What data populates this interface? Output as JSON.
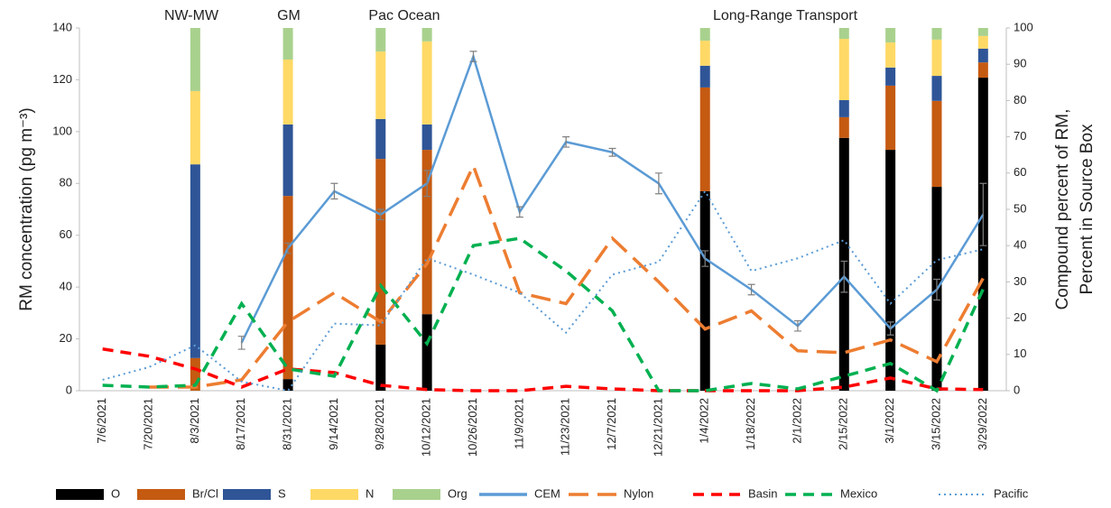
{
  "chart_data": {
    "type": "combo",
    "ylabel": "RM concentration (pg m⁻³)",
    "y2label": [
      "Compound percent of RM,",
      "Percent in Source Box"
    ],
    "annotations": [
      "NW-MW",
      "GM",
      "Pac Ocean",
      "Long-Range Transport"
    ],
    "categories": [
      "7/6/2021",
      "7/20/2021",
      "8/3/2021",
      "8/17/2021",
      "8/31/2021",
      "9/14/2021",
      "9/28/2021",
      "10/12/2021",
      "10/26/2021",
      "11/9/2021",
      "11/23/2021",
      "12/7/2021",
      "12/21/2021",
      "1/4/2022",
      "1/18/2022",
      "2/1/2022",
      "2/15/2022",
      "3/1/2022",
      "3/15/2022",
      "3/29/2022"
    ],
    "ylim": [
      0,
      140
    ],
    "yticks": [
      0,
      20,
      40,
      60,
      80,
      100,
      120,
      140
    ],
    "y2lim": [
      0,
      100
    ],
    "y2ticks": [
      0,
      10,
      20,
      30,
      40,
      50,
      60,
      70,
      80,
      90,
      100
    ],
    "series": [
      {
        "name": "O",
        "type": "bar",
        "axis": "y2",
        "color": "#000000",
        "values": [
          null,
          null,
          0,
          null,
          3.2,
          null,
          12.7,
          21.1,
          null,
          null,
          null,
          null,
          null,
          55,
          null,
          null,
          69.7,
          66.4,
          56.2,
          86.3
        ]
      },
      {
        "name": "Br/Cl",
        "type": "bar",
        "axis": "y2",
        "color": "#c55a11",
        "values": [
          null,
          null,
          9,
          null,
          50.5,
          null,
          51.2,
          45.3,
          null,
          null,
          null,
          null,
          null,
          28.6,
          null,
          null,
          5.7,
          17.7,
          23.7,
          4.2
        ]
      },
      {
        "name": "S",
        "type": "bar",
        "axis": "y2",
        "color": "#2f5597",
        "values": [
          null,
          null,
          53.4,
          null,
          19.7,
          null,
          11,
          7,
          null,
          null,
          null,
          null,
          null,
          6,
          null,
          null,
          4.7,
          5,
          6.9,
          3.8
        ]
      },
      {
        "name": "N",
        "type": "bar",
        "axis": "y2",
        "color": "#ffd966",
        "values": [
          null,
          null,
          20.2,
          null,
          17.9,
          null,
          18.6,
          22.9,
          null,
          null,
          null,
          null,
          null,
          6.9,
          null,
          null,
          16.9,
          6.9,
          10,
          3.5
        ]
      },
      {
        "name": "Org",
        "type": "bar",
        "axis": "y2",
        "color": "#a9d18e",
        "values": [
          null,
          null,
          17.4,
          null,
          8.7,
          null,
          6.5,
          3.7,
          null,
          null,
          null,
          null,
          null,
          3.5,
          null,
          null,
          3,
          4,
          3.2,
          2.2
        ]
      },
      {
        "name": "CEM",
        "type": "line",
        "style": "solid",
        "color": "#5b9bd5",
        "values": [
          null,
          null,
          null,
          18.5,
          55,
          77,
          68,
          80,
          129,
          69,
          96,
          92,
          80,
          51,
          39,
          25,
          44,
          24,
          39,
          68
        ],
        "errors": [
          null,
          null,
          null,
          2.5,
          2,
          3,
          2,
          5,
          2,
          2,
          2,
          1.5,
          4,
          3,
          2,
          2,
          6,
          2.5,
          4,
          12
        ]
      },
      {
        "name": "Nylon",
        "type": "line",
        "axis": "y2",
        "style": "long-dash",
        "color": "#ed7d31",
        "values": [
          null,
          1,
          1,
          3,
          19,
          27,
          19,
          35,
          62,
          27,
          24,
          42,
          30,
          17,
          22,
          11,
          10.5,
          14,
          8,
          31
        ]
      },
      {
        "name": "Basin",
        "type": "line",
        "axis": "y2",
        "style": "dash",
        "color": "#ff0000",
        "values": [
          11.5,
          9.5,
          6,
          1,
          6,
          5,
          1.5,
          0.3,
          0,
          0,
          1.2,
          0.5,
          0,
          0,
          0,
          0,
          1,
          3.5,
          0.5,
          0.3
        ]
      },
      {
        "name": "Mexico",
        "type": "line",
        "axis": "y2",
        "style": "dash",
        "color": "#00b050",
        "values": [
          1.5,
          1,
          1.5,
          24,
          6,
          4,
          29,
          13,
          40,
          42,
          33,
          22,
          0,
          0,
          2,
          0.5,
          4,
          7.5,
          0,
          28
        ]
      },
      {
        "name": "Pacific",
        "type": "line",
        "axis": "y2",
        "style": "dot",
        "color": "#5b9bd5",
        "values": [
          3,
          6.5,
          12.5,
          2.5,
          0,
          18.5,
          18,
          36.5,
          32,
          27,
          16,
          32,
          35.5,
          55,
          33,
          36.5,
          41.5,
          24,
          36,
          39
        ]
      }
    ]
  }
}
